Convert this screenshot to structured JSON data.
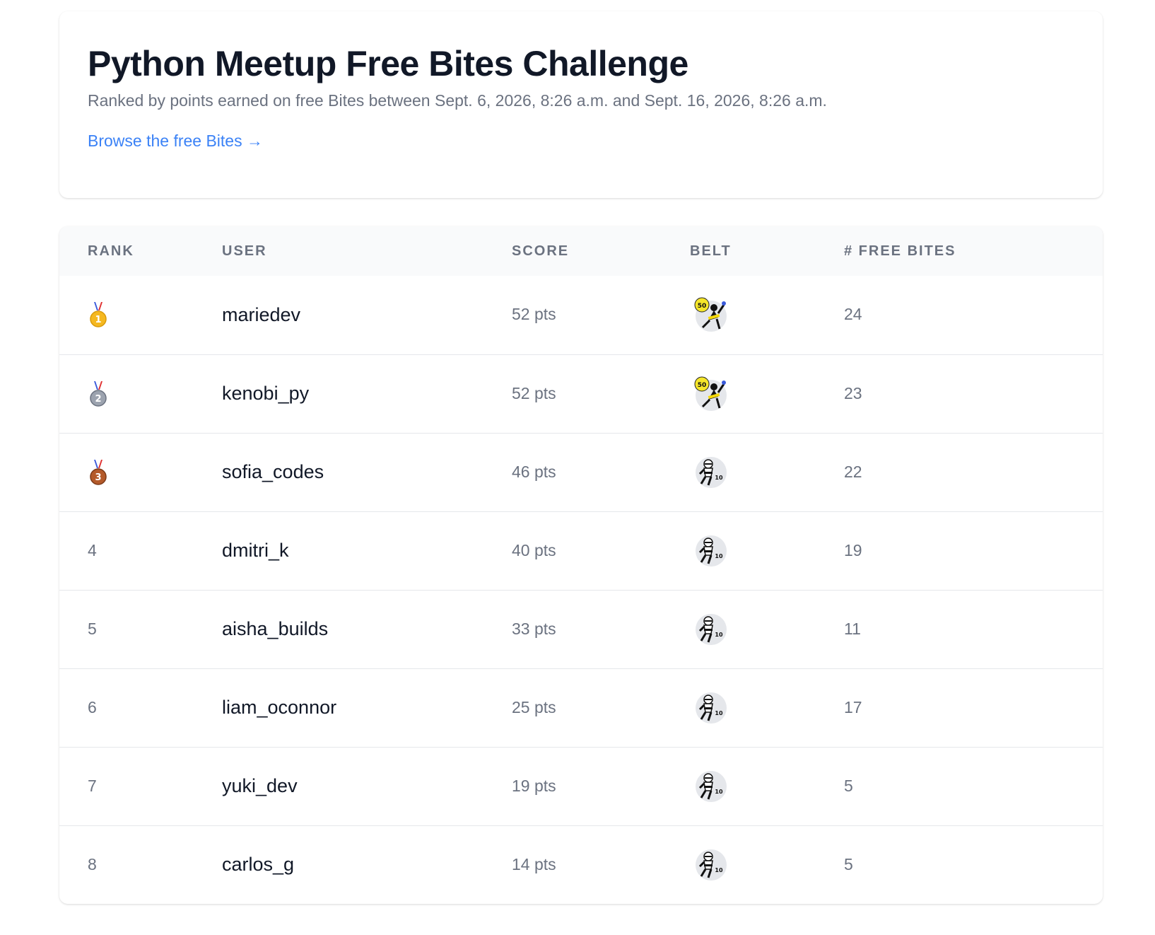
{
  "header": {
    "title": "Python Meetup Free Bites Challenge",
    "subtitle": "Ranked by points earned on free Bites between Sept. 6, 2026, 8:26 a.m. and Sept. 16, 2026, 8:26 a.m.",
    "browse_link": "Browse the free Bites →"
  },
  "table": {
    "columns": {
      "rank": "Rank",
      "user": "User",
      "score": "Score",
      "belt": "Belt",
      "free_bites": "# Free Bites"
    },
    "rows": [
      {
        "rank": "1",
        "medal": "gold-medal-icon",
        "user": "mariedev",
        "score": "52 pts",
        "belt_badge": "50",
        "belt_icon": "yellow-belt-ninja-icon",
        "free_bites": "24"
      },
      {
        "rank": "2",
        "medal": "silver-medal-icon",
        "user": "kenobi_py",
        "score": "52 pts",
        "belt_badge": "50",
        "belt_icon": "yellow-belt-ninja-icon",
        "free_bites": "23"
      },
      {
        "rank": "3",
        "medal": "bronze-medal-icon",
        "user": "sofia_codes",
        "score": "46 pts",
        "belt_badge": "10",
        "belt_icon": "white-belt-ninja-icon",
        "free_bites": "22"
      },
      {
        "rank": "4",
        "medal": "",
        "user": "dmitri_k",
        "score": "40 pts",
        "belt_badge": "10",
        "belt_icon": "white-belt-ninja-icon",
        "free_bites": "19"
      },
      {
        "rank": "5",
        "medal": "",
        "user": "aisha_builds",
        "score": "33 pts",
        "belt_badge": "10",
        "belt_icon": "white-belt-ninja-icon",
        "free_bites": "11"
      },
      {
        "rank": "6",
        "medal": "",
        "user": "liam_oconnor",
        "score": "25 pts",
        "belt_badge": "10",
        "belt_icon": "white-belt-ninja-icon",
        "free_bites": "17"
      },
      {
        "rank": "7",
        "medal": "",
        "user": "yuki_dev",
        "score": "19 pts",
        "belt_badge": "10",
        "belt_icon": "white-belt-ninja-icon",
        "free_bites": "5"
      },
      {
        "rank": "8",
        "medal": "",
        "user": "carlos_g",
        "score": "14 pts",
        "belt_badge": "10",
        "belt_icon": "white-belt-ninja-icon",
        "free_bites": "5"
      }
    ]
  },
  "colors": {
    "gold": "#f5b820",
    "silver": "#9ca3af",
    "bronze": "#b45a2a",
    "link": "#3b82f6",
    "yellow_badge": "#f5e62a"
  }
}
